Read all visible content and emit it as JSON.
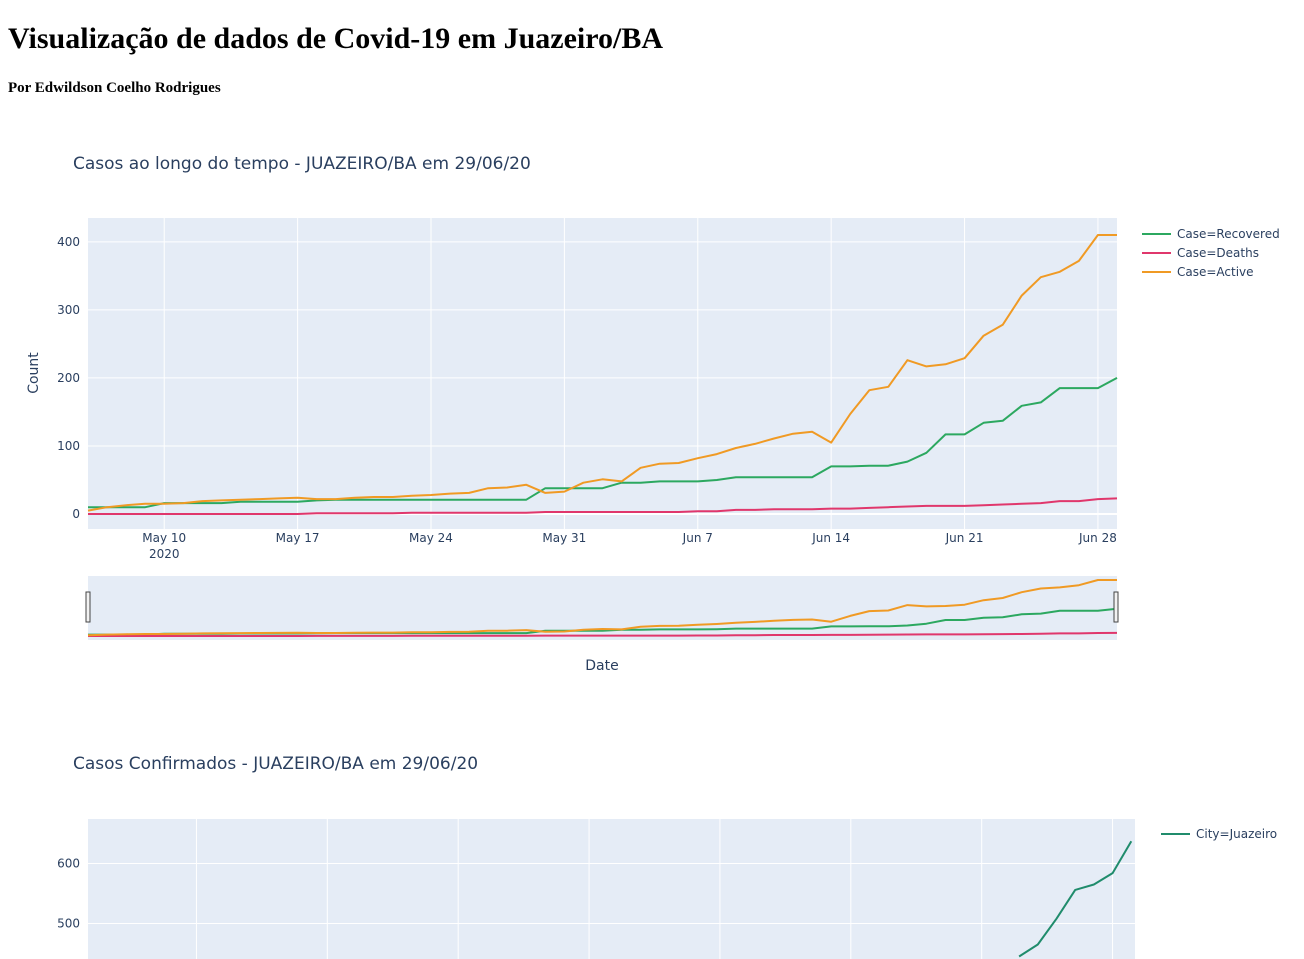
{
  "header": {
    "title": "Visualização de dados de Covid-19 em Juazeiro/BA",
    "author": "Por Edwildson Coelho Rodrigues"
  },
  "chart_data": [
    {
      "type": "line",
      "title": "Casos ao longo do tempo - JUAZEIRO/BA em 29/06/20",
      "xlabel": "Date",
      "ylabel": "Count",
      "x_start": "2020-05-06",
      "x_range": [
        "2020-05-06",
        "2020-06-29"
      ],
      "ylim": [
        -22,
        435
      ],
      "yticks": [
        0,
        100,
        200,
        300,
        400
      ],
      "xticks": [
        {
          "date": "2020-05-10",
          "label": "May 10",
          "sublabel": "2020"
        },
        {
          "date": "2020-05-17",
          "label": "May 17",
          "sublabel": ""
        },
        {
          "date": "2020-05-24",
          "label": "May 24",
          "sublabel": ""
        },
        {
          "date": "2020-05-31",
          "label": "May 31",
          "sublabel": ""
        },
        {
          "date": "2020-06-07",
          "label": "Jun 7",
          "sublabel": ""
        },
        {
          "date": "2020-06-14",
          "label": "Jun 14",
          "sublabel": ""
        },
        {
          "date": "2020-06-21",
          "label": "Jun 21",
          "sublabel": ""
        },
        {
          "date": "2020-06-28",
          "label": "Jun 28",
          "sublabel": ""
        }
      ],
      "rangeslider": true,
      "legend_position": "right",
      "series": [
        {
          "name": "Case=Recovered",
          "color": "#2ca860",
          "values": [
            10,
            10,
            10,
            10,
            16,
            16,
            16,
            16,
            18,
            18,
            18,
            18,
            20,
            21,
            21,
            21,
            21,
            21,
            21,
            21,
            21,
            21,
            21,
            21,
            38,
            38,
            38,
            38,
            46,
            46,
            48,
            48,
            48,
            50,
            54,
            54,
            54,
            54,
            54,
            70,
            70,
            71,
            71,
            77,
            90,
            117,
            117,
            134,
            137,
            159,
            164,
            185,
            185,
            185,
            200
          ]
        },
        {
          "name": "Case=Deaths",
          "color": "#e0376c",
          "values": [
            0,
            0,
            0,
            0,
            0,
            0,
            0,
            0,
            0,
            0,
            0,
            0,
            1,
            1,
            1,
            1,
            1,
            2,
            2,
            2,
            2,
            2,
            2,
            2,
            3,
            3,
            3,
            3,
            3,
            3,
            3,
            3,
            4,
            4,
            6,
            6,
            7,
            7,
            7,
            8,
            8,
            9,
            10,
            11,
            12,
            12,
            12,
            13,
            14,
            15,
            16,
            19,
            19,
            22,
            23
          ]
        },
        {
          "name": "Case=Active",
          "color": "#f09a24",
          "values": [
            5,
            10,
            13,
            15,
            15,
            16,
            19,
            20,
            21,
            22,
            23,
            24,
            22,
            22,
            24,
            25,
            25,
            27,
            28,
            30,
            31,
            38,
            39,
            43,
            31,
            33,
            46,
            51,
            48,
            68,
            74,
            75,
            82,
            88,
            97,
            103,
            111,
            118,
            121,
            105,
            147,
            182,
            187,
            226,
            217,
            220,
            229,
            262,
            278,
            321,
            348,
            356,
            372,
            410,
            410
          ]
        }
      ]
    },
    {
      "type": "line",
      "title": "Casos Confirmados - JUAZEIRO/BA em 29/06/20",
      "x_start": "2020-05-06",
      "yticks": [
        500,
        600
      ],
      "legend_position": "right",
      "series": [
        {
          "name": "City=Juazeiro",
          "color": "#208c6c",
          "values": [
            {
              "date": "2020-06-23",
              "value": 445
            },
            {
              "date": "2020-06-24",
              "value": 465
            },
            {
              "date": "2020-06-25",
              "value": 508
            },
            {
              "date": "2020-06-26",
              "value": 556
            },
            {
              "date": "2020-06-27",
              "value": 565
            },
            {
              "date": "2020-06-28",
              "value": 584
            },
            {
              "date": "2020-06-29",
              "value": 637
            }
          ]
        }
      ]
    }
  ]
}
